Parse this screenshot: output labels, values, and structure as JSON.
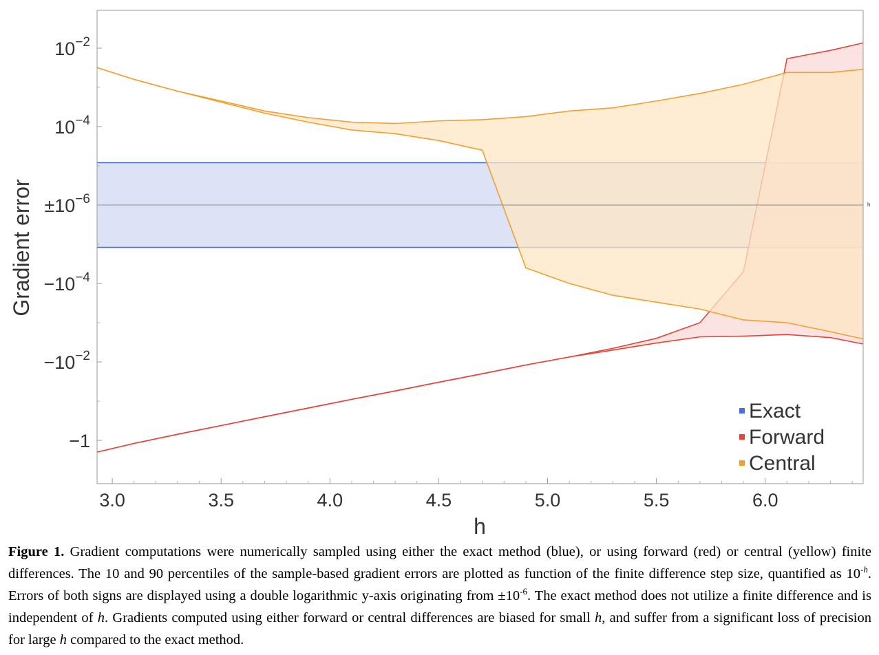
{
  "chart_data": {
    "type": "area",
    "xlabel": "h",
    "ylabel": "Gradient error",
    "xlim": [
      2.93,
      6.45
    ],
    "x_ticks": [
      "3.0",
      "3.5",
      "4.0",
      "4.5",
      "5.0",
      "5.5",
      "6.0"
    ],
    "y_ticks": [
      "10^-2",
      "10^-4",
      "±10^-6",
      "-10^-4",
      "-10^-2",
      "-1"
    ],
    "y_scale": "symmetric double log, originating from ±1e-6",
    "center_line_note": "h",
    "legend_position": "bottom-right",
    "series": [
      {
        "name": "Exact",
        "color": "#4a6fd8",
        "fill": "#dde3f7",
        "x": [
          2.93,
          6.45
        ],
        "upper": [
          1.2e-05,
          1.2e-05
        ],
        "lower": [
          -1.2e-05,
          -1.2e-05
        ]
      },
      {
        "name": "Forward",
        "color": "#e0473c",
        "fill": "#f8dad6",
        "x": [
          2.93,
          3.1,
          3.3,
          3.5,
          3.7,
          3.9,
          4.1,
          4.3,
          4.5,
          4.7,
          4.9,
          5.1,
          5.3,
          5.5,
          5.7,
          5.9,
          6.1,
          6.3,
          6.45
        ],
        "upper": [
          -2.0,
          -1.2,
          -0.7,
          -0.42,
          -0.25,
          -0.15,
          -0.09,
          -0.055,
          -0.033,
          -0.02,
          -0.012,
          -0.0075,
          -0.0045,
          -0.0025,
          -0.001,
          -5e-05,
          0.0054,
          0.0088,
          0.0136
        ],
        "lower": [
          -2.0,
          -1.2,
          -0.7,
          -0.42,
          -0.25,
          -0.15,
          -0.09,
          -0.055,
          -0.033,
          -0.02,
          -0.012,
          -0.0075,
          -0.005,
          -0.0033,
          -0.0023,
          -0.0022,
          -0.002,
          -0.0024,
          -0.0035
        ]
      },
      {
        "name": "Central",
        "color": "#f0a030",
        "fill": "#fde6c4",
        "x": [
          2.93,
          3.1,
          3.3,
          3.5,
          3.7,
          3.9,
          4.1,
          4.3,
          4.5,
          4.7,
          4.9,
          5.1,
          5.3,
          5.5,
          5.7,
          5.9,
          6.1,
          6.3,
          6.45
        ],
        "upper": [
          0.0032,
          0.0016,
          0.0008,
          0.00045,
          0.00025,
          0.00017,
          0.00013,
          0.00012,
          0.00014,
          0.00015,
          0.00018,
          0.00025,
          0.0003,
          0.00045,
          0.0007,
          0.0012,
          0.0024,
          0.0024,
          0.0029
        ],
        "lower": [
          0.0032,
          0.0016,
          0.0008,
          0.00042,
          0.00022,
          0.00013,
          8.2e-05,
          6.6e-05,
          4.4e-05,
          2.5e-05,
          -4e-05,
          -0.0001,
          -0.0002,
          -0.0003,
          -0.00045,
          -0.00085,
          -0.001,
          -0.0017,
          -0.0026
        ]
      }
    ]
  },
  "caption": {
    "label": "Figure 1.",
    "segments": [
      {
        "text": " Gradient computations were numerically sampled using either the exact method (blue), or using forward (red) or central (yellow) finite differences. The 10 and 90 percentiles of the sample-based gradient errors are plotted as function of the finite difference step size, quantified as 10",
        "style": "normal"
      },
      {
        "text": "-h",
        "style": "sup-italic"
      },
      {
        "text": ". Errors of both signs are displayed using a double logarithmic y-axis originating from ±10",
        "style": "normal"
      },
      {
        "text": "-6",
        "style": "sup"
      },
      {
        "text": ". The exact method does not utilize a finite difference and is independent of ",
        "style": "normal"
      },
      {
        "text": "h",
        "style": "italic"
      },
      {
        "text": ". Gradients computed using either forward or central differences are biased for small ",
        "style": "normal"
      },
      {
        "text": "h",
        "style": "italic"
      },
      {
        "text": ", and suffer from a significant loss of precision for large ",
        "style": "normal"
      },
      {
        "text": "h",
        "style": "italic"
      },
      {
        "text": " compared to the exact method.",
        "style": "normal"
      }
    ]
  }
}
